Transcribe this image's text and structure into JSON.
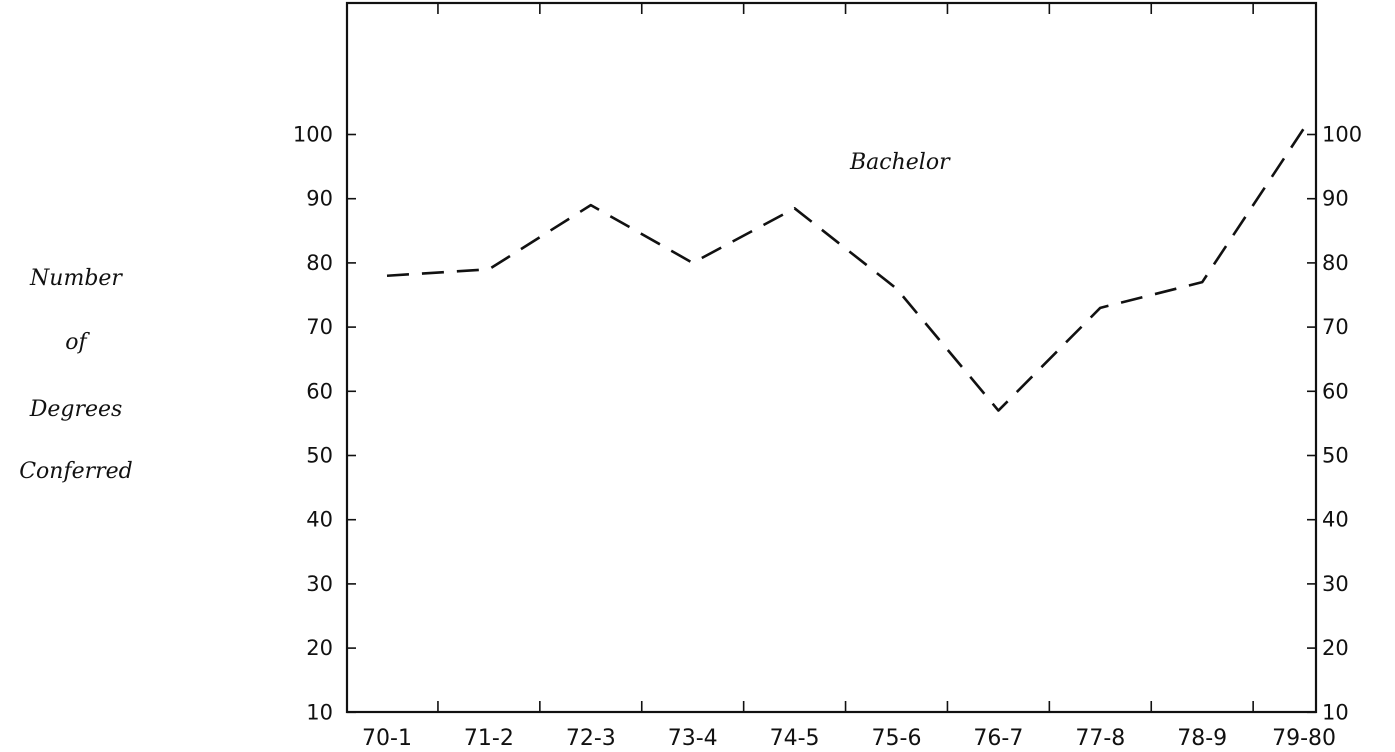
{
  "chart_data": {
    "type": "line",
    "title": "",
    "xlabel": "",
    "ylabel_lines": [
      "Number",
      "of",
      "Degrees",
      "Conferred"
    ],
    "categories": [
      "70-1",
      "71-2",
      "72-3",
      "73-4",
      "74-5",
      "75-6",
      "76-7",
      "77-8",
      "78-9",
      "79-80"
    ],
    "y_ticks": [
      "10",
      "20",
      "30",
      "40",
      "50",
      "60",
      "70",
      "80",
      "90",
      "100"
    ],
    "right_y_ticks": [
      "10",
      "20",
      "30",
      "40",
      "50",
      "60",
      "70",
      "80",
      "90",
      "100"
    ],
    "ylim": [
      0,
      110
    ],
    "grid": false,
    "series": [
      {
        "name": "Bachelor",
        "style": "dashed",
        "color": "#111111",
        "values": [
          78,
          79,
          89,
          80,
          88.5,
          76,
          57,
          73,
          77,
          101
        ]
      }
    ]
  }
}
